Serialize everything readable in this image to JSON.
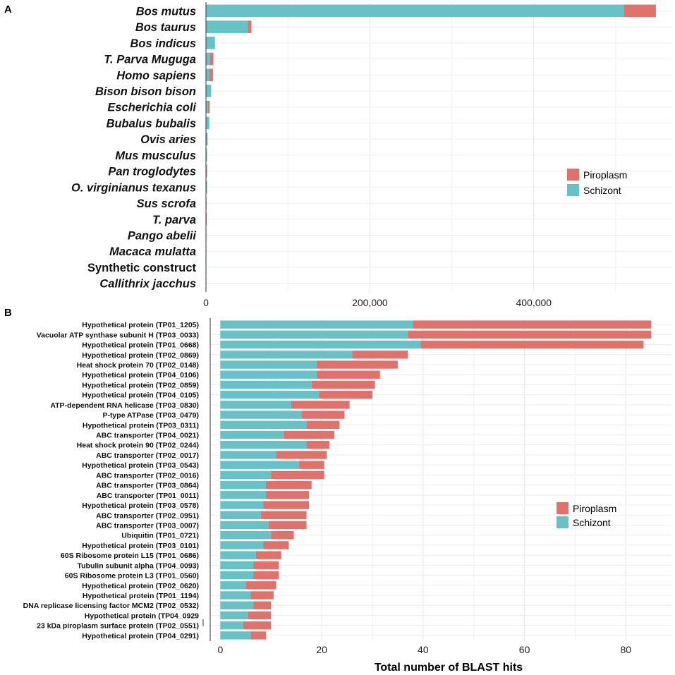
{
  "chart_data": [
    {
      "panel": "A",
      "type": "bar",
      "orientation": "horizontal",
      "stacked": true,
      "categories": [
        "Bos mutus",
        "Bos taurus",
        "Bos indicus",
        "T. Parva Muguga",
        "Homo sapiens",
        "Bison bison bison",
        "Escherichia coli",
        "Bubalus bubalis",
        "Ovis aries",
        "Mus musculus",
        "Pan troglodytes",
        "O. virginianus texanus",
        "Sus scrofa",
        "T. parva",
        "Pango abelii",
        "Macaca mulatta",
        "Synthetic construct",
        "Callithrix jacchus"
      ],
      "italic": [
        true,
        true,
        true,
        true,
        true,
        true,
        true,
        true,
        true,
        true,
        true,
        true,
        true,
        true,
        true,
        true,
        false,
        true
      ],
      "series": [
        {
          "name": "Schizont",
          "color": "#66c2c7",
          "values": [
            510000,
            51000,
            11000,
            5000,
            4000,
            6000,
            2500,
            4000,
            2000,
            1000,
            600,
            1200,
            500,
            300,
            200,
            150,
            100,
            50
          ]
        },
        {
          "name": "Piroplasm",
          "color": "#e0716b",
          "values": [
            39000,
            4500,
            0,
            4000,
            4500,
            300,
            2000,
            0,
            100,
            300,
            800,
            200,
            200,
            500,
            300,
            150,
            100,
            50
          ]
        }
      ],
      "xlim": [
        0,
        568000
      ],
      "xticks": [
        0,
        200000,
        400000
      ],
      "xtick_labels": [
        "0",
        "200,000",
        "400,000"
      ],
      "legend_position": "right",
      "xlabel": "",
      "ylabel": ""
    },
    {
      "panel": "B",
      "type": "bar",
      "orientation": "horizontal",
      "stacked": true,
      "categories": [
        "Hypothetical protein (TP01_1205)",
        "Vacuolar ATP synthase subunit H (TP03_0033)",
        "Hypothetical protein (TP01_0668)",
        "Hypothetical protein (TP02_0869)",
        "Heat shock protein 70 (TP02_0148)",
        "Hypothetical protein (TP04_0106)",
        "Hypothetical protein (TP02_0859)",
        "Hypothetical protein (TP04_0105)",
        "ATP-dependent RNA helicase (TP03_0830)",
        "P-type ATPase (TP03_0479)",
        "Hypothetical protein (TP03_0311)",
        "ABC transporter (TP04_0021)",
        "Heat shock protein 90 (TP02_0244)",
        "ABC transporter (TP02_0017)",
        "Hypothetical protein (TP03_0543)",
        "ABC transporter (TP02_0016)",
        "ABC transporter (TP03_0864)",
        "ABC transporter (TP01_0011)",
        "Hypothetical protein (TP03_0578)",
        "ABC transporter  (TP02_0951)",
        "ABC transporter (TP03_0007)",
        "Ubiquitin (TP01_0721)",
        "Hypothetical protein (TP03_0101)",
        "60S Ribosome protein L15 (TP01_0686)",
        "Tubulin subunit alpha (TP04_0093)",
        "60S Ribosome protein L3 (TP01_0560)",
        "Hypothetical protein (TP02_0620)",
        "Hypothetical protein (TP01_1194)",
        "DNA replicase licensing factor MCM2 (TP02_0532)",
        "Hypothetical protein (TP04_0929",
        "23 kDa piroplasm surface protein (TP02_0551)",
        "Hypothetical protein (TP04_0291)"
      ],
      "series": [
        {
          "name": "Schizont",
          "color": "#66c2c7",
          "values": [
            38,
            37,
            39.5,
            26,
            19,
            19,
            18,
            19.5,
            14,
            16,
            17,
            12.5,
            17,
            11,
            15.5,
            10,
            9,
            9,
            8.5,
            8,
            9.5,
            10,
            8.5,
            7,
            6.5,
            6.5,
            5,
            6,
            6.5,
            5.5,
            4.5,
            6
          ]
        },
        {
          "name": "Piroplasm",
          "color": "#e0716b",
          "values": [
            47,
            48,
            44,
            11,
            16,
            12.5,
            12.5,
            10.5,
            11.5,
            8.5,
            6.5,
            10,
            4.5,
            10,
            5,
            10.5,
            9,
            8.5,
            9,
            9,
            7.5,
            4.5,
            5,
            5,
            5,
            5,
            6,
            4.5,
            3.5,
            4.5,
            5.5,
            3
          ]
        }
      ],
      "xlim": [
        -2,
        89
      ],
      "xticks": [
        0,
        20,
        40,
        60,
        80
      ],
      "xtick_labels": [
        "0",
        "20",
        "40",
        "60",
        "80"
      ],
      "legend_position": "right",
      "xlabel": "Total number of BLAST hits",
      "ylabel": ""
    }
  ],
  "panels": {
    "a_label": "A",
    "b_label": "B"
  },
  "legend_a": {
    "items": [
      "Piroplasm",
      "Schizont"
    ]
  },
  "legend_b": {
    "items": [
      "Piroplasm",
      "Schizont"
    ]
  },
  "x_axis_title": "Total number of BLAST hits"
}
